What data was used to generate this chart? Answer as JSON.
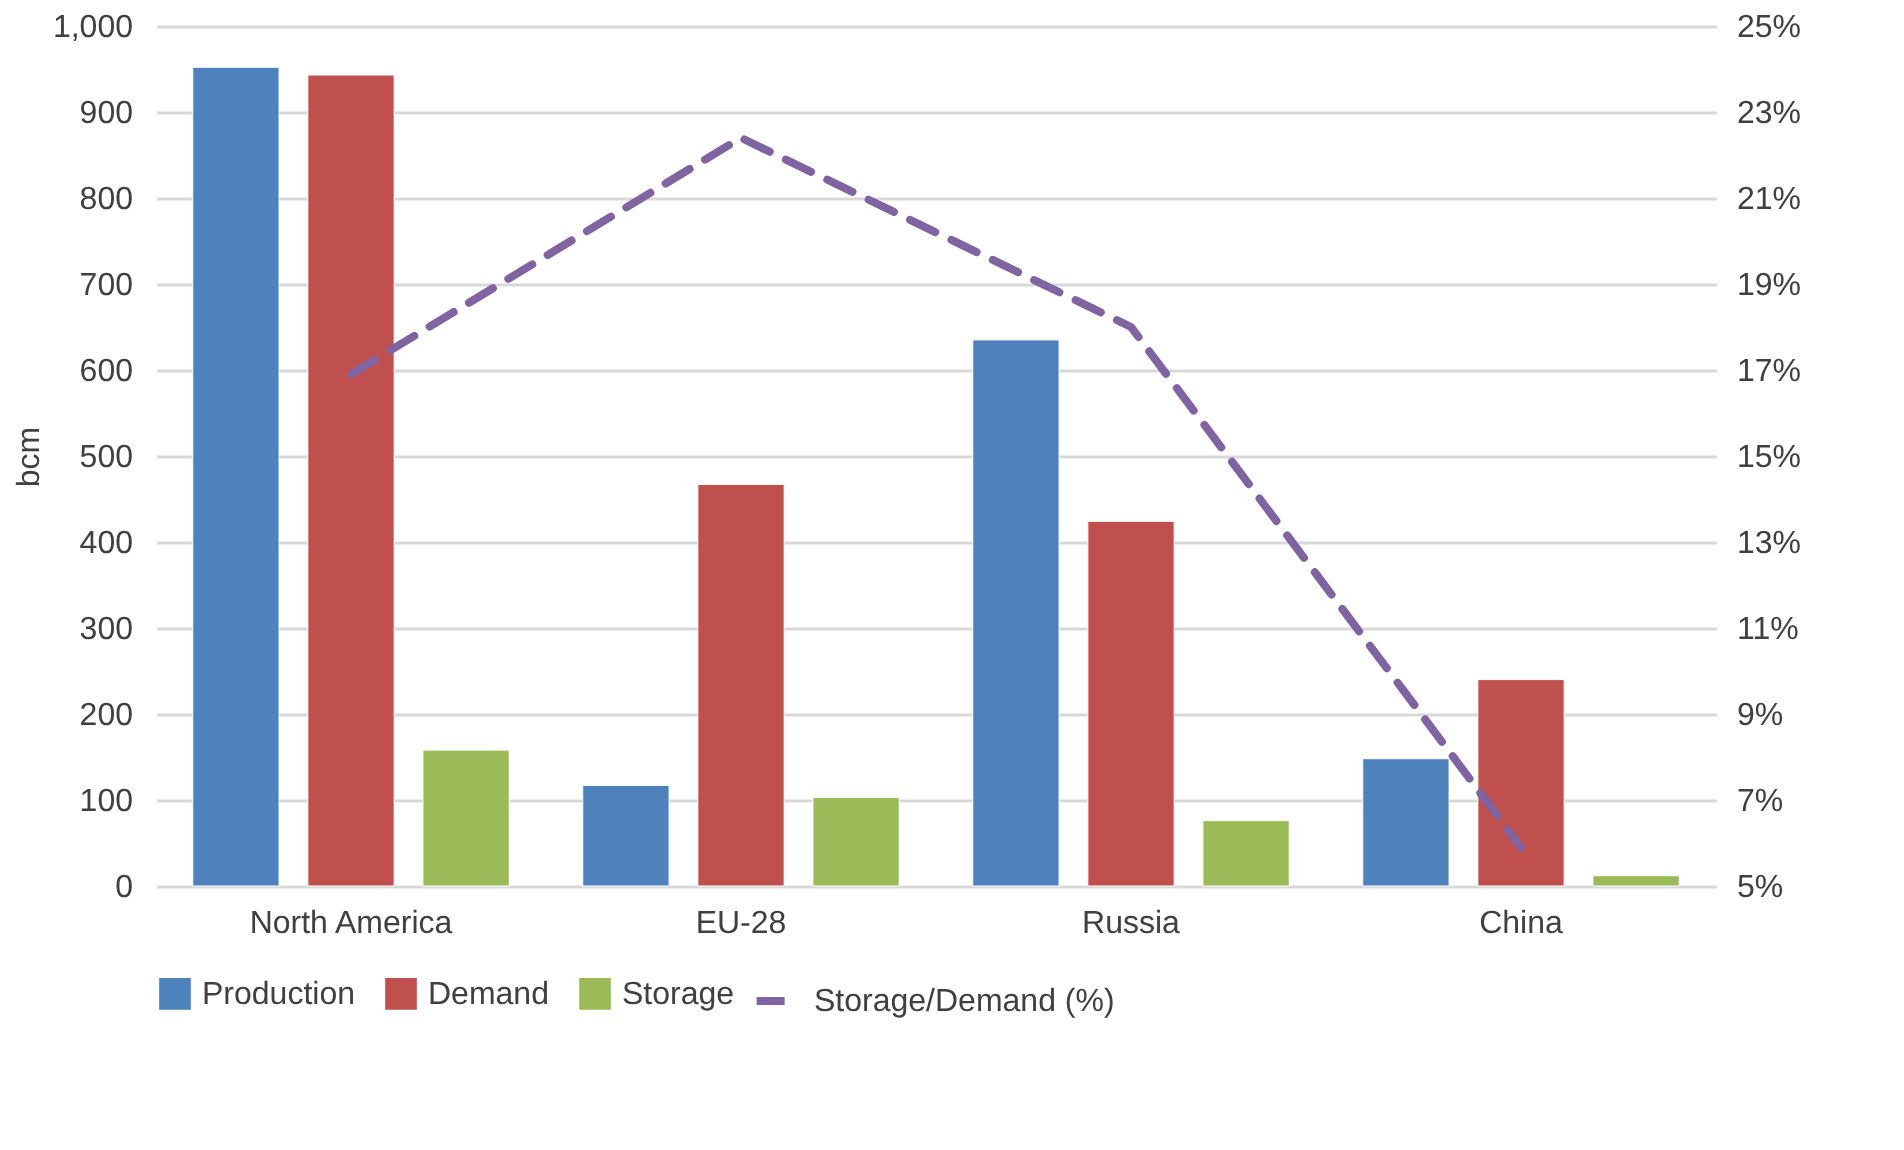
{
  "chart_data": {
    "type": "bar",
    "ylabel": "bcm",
    "categories": [
      "North America",
      "EU-28",
      "Russia",
      "China"
    ],
    "series": [
      {
        "name": "Production",
        "color": "#4f81bd",
        "values": [
          952,
          117,
          635,
          148
        ]
      },
      {
        "name": "Demand",
        "color": "#c0504d",
        "values": [
          943,
          467,
          424,
          240
        ]
      },
      {
        "name": "Storage",
        "color": "#9bbb59",
        "values": [
          158,
          103,
          76,
          12
        ]
      },
      {
        "name": "Storage/Demand (%)",
        "color": "#8064a2",
        "type": "line",
        "axis": "y2",
        "line_style": "dashed",
        "marker": "none",
        "values": [
          16.9,
          22.4,
          18.0,
          5.9
        ]
      }
    ],
    "ylim": [
      0,
      1000
    ],
    "yticks": [
      0,
      100,
      200,
      300,
      400,
      500,
      600,
      700,
      800,
      900,
      {
        "value": 1000,
        "label": "1,000"
      }
    ],
    "y2lim": [
      5,
      25
    ],
    "y2ticks": [
      {
        "value": 5,
        "label": "5%"
      },
      {
        "value": 7,
        "label": "7%"
      },
      {
        "value": 9,
        "label": "9%"
      },
      {
        "value": 11,
        "label": "11%"
      },
      {
        "value": 13,
        "label": "13%"
      },
      {
        "value": 15,
        "label": "15%"
      },
      {
        "value": 17,
        "label": "17%"
      },
      {
        "value": 19,
        "label": "19%"
      },
      {
        "value": 21,
        "label": "21%"
      },
      {
        "value": 23,
        "label": "23%"
      },
      {
        "value": 25,
        "label": "25%"
      }
    ],
    "grid": "y",
    "legend": "bottom"
  }
}
